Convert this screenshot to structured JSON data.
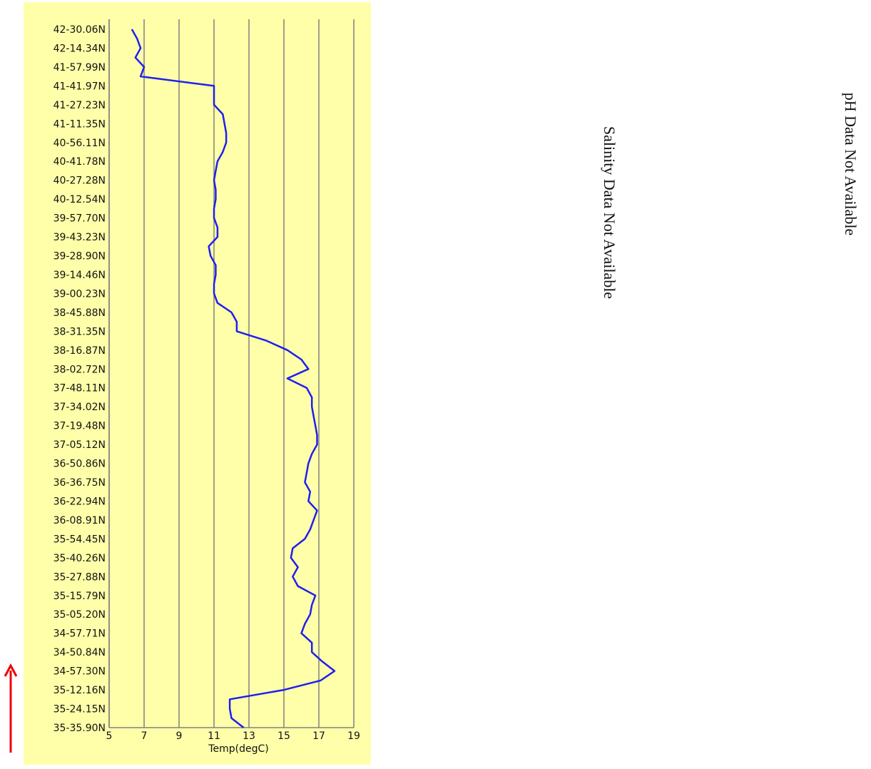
{
  "chart_data": {
    "type": "line",
    "orientation": "horizontal",
    "xlabel": "Temp(degC)",
    "xlim": [
      5,
      19
    ],
    "xticks": [
      5,
      7,
      9,
      11,
      13,
      15,
      17,
      19
    ],
    "grid": true,
    "background": "#ffffaa",
    "categories": [
      "42-30.06N",
      null,
      "42-14.34N",
      null,
      "41-57.99N",
      null,
      "41-41.97N",
      null,
      "41-27.23N",
      null,
      "41-11.35N",
      null,
      "40-56.11N",
      null,
      "40-41.78N",
      null,
      "40-27.28N",
      null,
      "40-12.54N",
      null,
      "39-57.70N",
      null,
      "39-43.23N",
      null,
      "39-28.90N",
      null,
      "39-14.46N",
      null,
      "39-00.23N",
      null,
      "38-45.88N",
      null,
      "38-31.35N",
      null,
      "38-16.87N",
      null,
      "38-02.72N",
      null,
      "37-48.11N",
      null,
      "37-34.02N",
      null,
      "37-19.48N",
      null,
      "37-05.12N",
      null,
      "36-50.86N",
      null,
      "36-36.75N",
      null,
      "36-22.94N",
      null,
      "36-08.91N",
      null,
      "35-54.45N",
      null,
      "35-40.26N",
      null,
      "35-27.88N",
      null,
      "35-15.79N",
      null,
      "35-05.20N",
      null,
      "34-57.71N",
      null,
      "34-50.84N",
      null,
      "34-57.30N",
      null,
      "35-12.16N",
      null,
      "35-24.15N",
      null,
      "35-35.90N"
    ],
    "series": [
      {
        "name": "Temp",
        "color": "#1f1fef",
        "values": [
          6.3,
          6.6,
          6.8,
          6.5,
          7.0,
          6.8,
          11.0,
          11.0,
          11.0,
          11.5,
          11.6,
          11.7,
          11.7,
          11.5,
          11.2,
          11.1,
          11.0,
          11.1,
          11.1,
          11.0,
          11.0,
          11.2,
          11.2,
          10.7,
          10.8,
          11.1,
          11.1,
          11.0,
          11.0,
          11.2,
          12.0,
          12.3,
          12.3,
          14.0,
          15.2,
          16.0,
          16.4,
          15.2,
          16.3,
          16.6,
          16.6,
          16.7,
          16.8,
          16.9,
          16.9,
          16.6,
          16.4,
          16.3,
          16.2,
          16.5,
          16.4,
          16.9,
          16.7,
          16.5,
          16.2,
          15.5,
          15.4,
          15.8,
          15.5,
          15.8,
          16.8,
          16.6,
          16.5,
          16.2,
          16.0,
          16.6,
          16.6,
          17.2,
          17.9,
          17.1,
          15.0,
          11.9,
          11.9,
          12.0,
          12.7
        ]
      }
    ]
  },
  "salinity_panel": {
    "message": "Salinity Data Not Available"
  },
  "ph_panel": {
    "message": "pH Data Not Available"
  }
}
